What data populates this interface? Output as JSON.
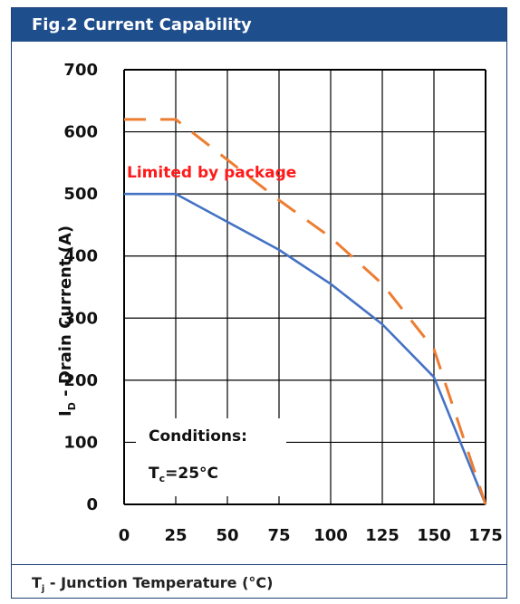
{
  "header": {
    "title": "Fig.2 Current Capability"
  },
  "footer": {
    "xlabel_main": "T",
    "xlabel_sub": "j",
    "xlabel_rest": " - Junction Temperature (°C)"
  },
  "colors": {
    "accent": "#1f4e8c",
    "series_solid": "#4472c4",
    "series_dashed": "#ed7d31",
    "limit_text": "#ff1a1a"
  },
  "chart_data": {
    "type": "line",
    "xlabel": "Tj - Junction Temperature (°C)",
    "ylabel": "ID - Drain Current (A)",
    "ylabel_main": "I",
    "ylabel_sub": "D",
    "ylabel_rest": " - Drain Current (A)",
    "xlim": [
      0,
      175
    ],
    "ylim": [
      0,
      700
    ],
    "xticks": [
      0,
      25,
      50,
      75,
      100,
      125,
      150,
      175
    ],
    "yticks": [
      0,
      100,
      200,
      300,
      400,
      500,
      600,
      700
    ],
    "grid": true,
    "series": [
      {
        "style": "solid",
        "x": [
          0,
          25,
          50,
          75,
          100,
          125,
          150,
          175
        ],
        "y": [
          500,
          500,
          455,
          410,
          355,
          290,
          205,
          0
        ]
      },
      {
        "style": "dashed",
        "x": [
          0,
          25,
          50,
          75,
          100,
          125,
          150,
          175
        ],
        "y": [
          620,
          620,
          555,
          490,
          430,
          355,
          250,
          0
        ]
      }
    ],
    "annotations": {
      "limit": "Limited by package",
      "conditions_title": "Conditions:",
      "conditions_main": "T",
      "conditions_sub": "c",
      "conditions_rest": "=25°C"
    }
  }
}
